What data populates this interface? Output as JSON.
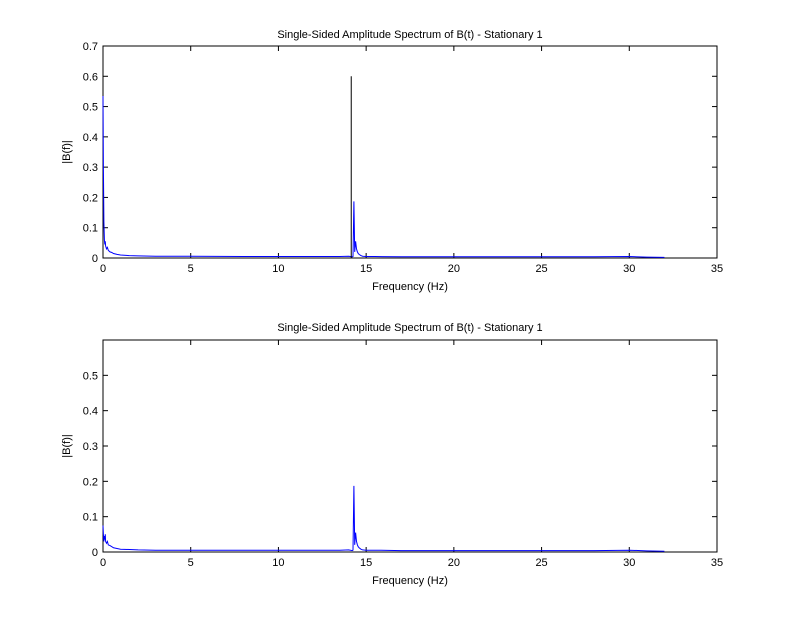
{
  "chart_data": [
    {
      "type": "line",
      "title": "Single-Sided Amplitude Spectrum of B(t) - Stationary 1",
      "xlabel": "Frequency (Hz)",
      "ylabel": "|B(f)|",
      "xlim": [
        0,
        35
      ],
      "ylim": [
        0,
        0.7
      ],
      "xticks": [
        0,
        5,
        10,
        15,
        20,
        25,
        30,
        35
      ],
      "yticks": [
        0,
        0.1,
        0.2,
        0.3,
        0.4,
        0.5,
        0.6,
        0.7
      ],
      "ytick_labels": [
        "0",
        "0.1",
        "0.2",
        "0.3",
        "0.4",
        "0.5",
        "0.6",
        "0.7"
      ],
      "grid": false,
      "series": [
        {
          "color": "#0000ff",
          "x": [
            0.0,
            0.02,
            0.05,
            0.08,
            0.1,
            0.13,
            0.15,
            0.2,
            0.25,
            0.3,
            0.4,
            0.5,
            0.6,
            0.8,
            1.0,
            1.5,
            2.0,
            3.0,
            5.0,
            8.0,
            10.0,
            12.0,
            13.5,
            14.0,
            14.1,
            14.2,
            14.25,
            14.3,
            14.35,
            14.4,
            14.45,
            14.5,
            14.55,
            14.6,
            14.7,
            14.8,
            15.0,
            15.5,
            17.0,
            20.0,
            23.0,
            25.0,
            28.0,
            30.0,
            31.0,
            32.0
          ],
          "y": [
            0.535,
            0.3,
            0.12,
            0.06,
            0.045,
            0.055,
            0.04,
            0.03,
            0.035,
            0.025,
            0.02,
            0.018,
            0.015,
            0.012,
            0.01,
            0.008,
            0.007,
            0.006,
            0.006,
            0.005,
            0.005,
            0.005,
            0.005,
            0.006,
            0.005,
            0.004,
            0.005,
            0.187,
            0.02,
            0.055,
            0.03,
            0.02,
            0.015,
            0.012,
            0.008,
            0.006,
            0.005,
            0.005,
            0.004,
            0.004,
            0.004,
            0.004,
            0.004,
            0.005,
            0.003,
            0.002
          ]
        },
        {
          "color": "#000000",
          "x": [
            14.15
          ],
          "y": [
            0.6
          ]
        }
      ]
    },
    {
      "type": "line",
      "title": "Single-Sided Amplitude Spectrum of B(t) - Stationary 1",
      "xlabel": "Frequency (Hz)",
      "ylabel": "|B(f)|",
      "xlim": [
        0,
        35
      ],
      "ylim": [
        0,
        0.6
      ],
      "xticks": [
        0,
        5,
        10,
        15,
        20,
        25,
        30,
        35
      ],
      "yticks": [
        0,
        0.1,
        0.2,
        0.3,
        0.4,
        0.5
      ],
      "ytick_labels": [
        "0",
        "0.1",
        "0.2",
        "0.3",
        "0.4",
        "0.5"
      ],
      "grid": false,
      "series": [
        {
          "color": "#0000ff",
          "x": [
            0.0,
            0.02,
            0.05,
            0.08,
            0.1,
            0.13,
            0.15,
            0.2,
            0.25,
            0.3,
            0.4,
            0.5,
            0.6,
            0.8,
            1.0,
            1.5,
            2.0,
            3.0,
            5.0,
            8.0,
            10.0,
            12.0,
            13.5,
            14.0,
            14.1,
            14.2,
            14.25,
            14.3,
            14.35,
            14.4,
            14.45,
            14.5,
            14.55,
            14.6,
            14.7,
            14.8,
            15.0,
            15.5,
            17.0,
            20.0,
            23.0,
            25.0,
            28.0,
            30.0,
            31.0,
            32.0
          ],
          "y": [
            0.075,
            0.05,
            0.03,
            0.045,
            0.035,
            0.05,
            0.03,
            0.025,
            0.03,
            0.02,
            0.018,
            0.015,
            0.012,
            0.01,
            0.008,
            0.007,
            0.006,
            0.005,
            0.005,
            0.005,
            0.005,
            0.005,
            0.005,
            0.006,
            0.005,
            0.004,
            0.005,
            0.187,
            0.02,
            0.055,
            0.03,
            0.02,
            0.015,
            0.012,
            0.008,
            0.006,
            0.005,
            0.005,
            0.004,
            0.004,
            0.004,
            0.004,
            0.004,
            0.005,
            0.003,
            0.002
          ]
        }
      ]
    }
  ]
}
